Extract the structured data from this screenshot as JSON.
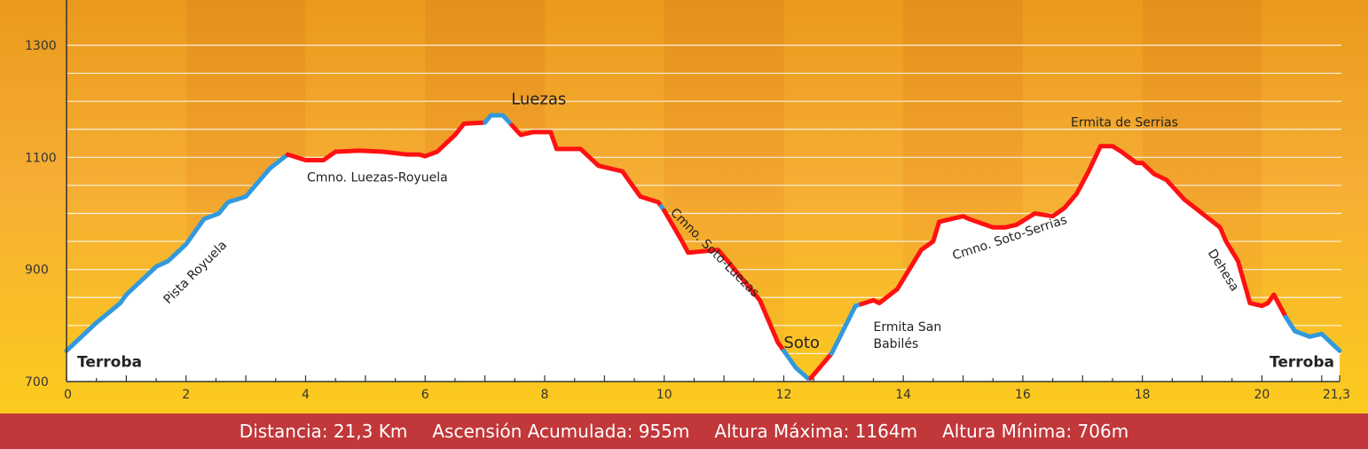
{
  "chart_data": {
    "type": "area",
    "title": "",
    "xlabel": "",
    "ylabel": "",
    "xlim": [
      0,
      21.3
    ],
    "ylim": [
      700,
      1330
    ],
    "x_ticks": [
      0,
      2,
      4,
      6,
      8,
      10,
      12,
      14,
      16,
      18,
      20,
      21.3
    ],
    "x_tick_labels": [
      "0",
      "2",
      "4",
      "6",
      "8",
      "10",
      "12",
      "14",
      "16",
      "18",
      "20",
      "21,3"
    ],
    "y_ticks": [
      700,
      900,
      1100,
      1300
    ],
    "y_tick_labels": [
      "700",
      "900",
      "1100",
      "1300"
    ],
    "grid": true,
    "series": [
      {
        "x": [
          0,
          0.5,
          0.9,
          1.0,
          1.5,
          1.7,
          2.0,
          2.3,
          2.55,
          2.7,
          2.85,
          3.0,
          3.4,
          3.7,
          4.0,
          4.3,
          4.5,
          4.9,
          5.3,
          5.7,
          5.9,
          6.0,
          6.2,
          6.5,
          6.65,
          7.0,
          7.1,
          7.3,
          7.6,
          7.8,
          8.1,
          8.2,
          8.4,
          8.6,
          8.9,
          9.1,
          9.3,
          9.6,
          9.9,
          10.0,
          10.3,
          10.4,
          10.9,
          11.1,
          11.6,
          11.9,
          12.2,
          12.4,
          12.45,
          12.8,
          13.2,
          13.5,
          13.6,
          13.9,
          14.3,
          14.5,
          14.6,
          14.8,
          15.0,
          15.1,
          15.5,
          15.7,
          15.9,
          16.2,
          16.5,
          16.7,
          16.9,
          17.1,
          17.3,
          17.5,
          17.65,
          17.9,
          18.0,
          18.2,
          18.4,
          18.7,
          19.0,
          19.3,
          19.4,
          19.6,
          19.8,
          20.0,
          20.1,
          20.2,
          20.4,
          20.55,
          20.8,
          21.0,
          21.3
        ],
        "y": [
          755,
          805,
          840,
          855,
          905,
          915,
          945,
          990,
          1000,
          1020,
          1025,
          1030,
          1080,
          1105,
          1095,
          1095,
          1110,
          1112,
          1110,
          1105,
          1105,
          1102,
          1110,
          1140,
          1160,
          1162,
          1175,
          1175,
          1140,
          1145,
          1145,
          1115,
          1115,
          1115,
          1085,
          1080,
          1075,
          1030,
          1020,
          1005,
          950,
          930,
          935,
          910,
          845,
          770,
          725,
          706,
          706,
          750,
          835,
          845,
          840,
          865,
          935,
          950,
          985,
          990,
          995,
          990,
          975,
          975,
          980,
          1000,
          995,
          1010,
          1035,
          1075,
          1120,
          1120,
          1110,
          1090,
          1090,
          1070,
          1060,
          1025,
          1000,
          975,
          950,
          915,
          840,
          835,
          840,
          855,
          815,
          790,
          780,
          785,
          755
        ],
        "segment_colors": [
          "#3399dd",
          "#ff1111"
        ]
      }
    ],
    "annotations": [
      {
        "text": "Terroba",
        "x": 0,
        "y": 755
      },
      {
        "text": "Pista Royuela",
        "x": 2.2,
        "y": 890
      },
      {
        "text": "Cmno. Luezas-Royuela",
        "x": 5.2,
        "y": 1057
      },
      {
        "text": "Luezas",
        "x": 7.9,
        "y": 1195
      },
      {
        "text": "Cmno. Soto-Luezas",
        "x": 10.8,
        "y": 925
      },
      {
        "text": "Soto",
        "x": 12.3,
        "y": 760
      },
      {
        "text": "Ermita San",
        "x": 13.5,
        "y": 790
      },
      {
        "text": "Babilés",
        "x": 13.5,
        "y": 760
      },
      {
        "text": "Cmno. Soto-Serrias",
        "x": 15.8,
        "y": 950
      },
      {
        "text": "Ermita de Serrias",
        "x": 17.7,
        "y": 1155
      },
      {
        "text": "Dehesa",
        "x": 19.3,
        "y": 895
      },
      {
        "text": "Terroba",
        "x": 21.3,
        "y": 755
      }
    ]
  },
  "stats": {
    "distance": "Distancia: 21,3 Km",
    "ascent": "Ascensión Acumulada: 955m",
    "max_altitude": "Altura Máxima: 1164m",
    "min_altitude": "Altura Mínima: 706m"
  },
  "colors": {
    "footer": "#c1373a",
    "route_blue": "#3399dd",
    "route_red": "#ff1111"
  }
}
